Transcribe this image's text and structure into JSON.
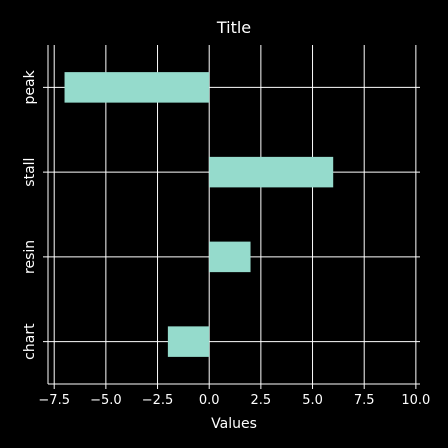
{
  "chart_data": {
    "type": "bar",
    "orientation": "horizontal",
    "title": "Title",
    "xlabel": "Values",
    "ylabel": "",
    "categories": [
      "peak",
      "stall",
      "resin",
      "chart"
    ],
    "values": [
      -7,
      6,
      2,
      -2
    ],
    "xlim": [
      -7.8,
      10.2
    ],
    "xticks": [
      -7.5,
      -5.0,
      -2.5,
      0.0,
      2.5,
      5.0,
      7.5,
      10.0
    ],
    "xtick_labels": [
      "−7.5",
      "−5.0",
      "−2.5",
      "0.0",
      "2.5",
      "5.0",
      "7.5",
      "10.0"
    ],
    "grid": true,
    "bar_color": "#95dbcc",
    "background_color": "#000000",
    "text_color": "#ffffff"
  }
}
